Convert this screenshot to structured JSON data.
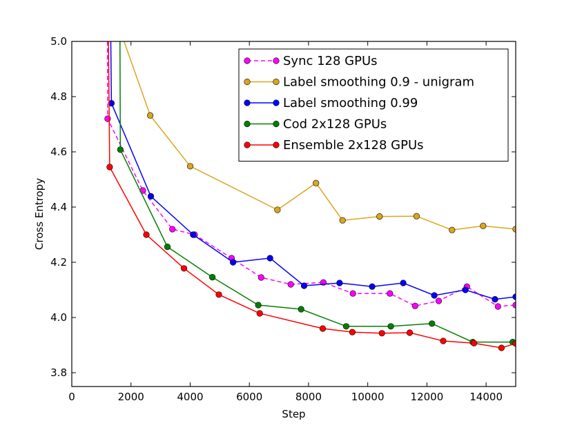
{
  "chart_data": {
    "type": "line",
    "title": "",
    "xlabel": "Step",
    "ylabel": "Cross Entropy",
    "xlim": [
      0,
      15000
    ],
    "ylim": [
      3.75,
      5.0
    ],
    "xticks": [
      0,
      2000,
      4000,
      6000,
      8000,
      10000,
      12000,
      14000
    ],
    "yticks": [
      3.8,
      4.0,
      4.2,
      4.4,
      4.6,
      4.8,
      5.0
    ],
    "grid": false,
    "legend_position": "top-right",
    "series": [
      {
        "name": "Sync 128 GPUs",
        "color": "#ff00ff",
        "linestyle": "dashed",
        "points": [
          [
            1200,
            5.3
          ],
          [
            1210,
            4.72
          ],
          [
            2400,
            4.46
          ],
          [
            3400,
            4.32
          ],
          [
            4150,
            4.3
          ],
          [
            5400,
            4.215
          ],
          [
            6400,
            4.145
          ],
          [
            7400,
            4.12
          ],
          [
            8500,
            4.127
          ],
          [
            9500,
            4.087
          ],
          [
            10750,
            4.087
          ],
          [
            11600,
            4.042
          ],
          [
            12400,
            4.06
          ],
          [
            13350,
            4.112
          ],
          [
            14400,
            4.04
          ],
          [
            15000,
            4.045
          ]
        ]
      },
      {
        "name": "Label smoothing 0.9 - unigram",
        "color": "#daa520",
        "linestyle": "solid",
        "points": [
          [
            1600,
            5.05
          ],
          [
            2650,
            4.732
          ],
          [
            4000,
            4.548
          ],
          [
            6950,
            4.39
          ],
          [
            8250,
            4.487
          ],
          [
            9150,
            4.352
          ],
          [
            10400,
            4.366
          ],
          [
            11650,
            4.367
          ],
          [
            12850,
            4.317
          ],
          [
            13900,
            4.332
          ],
          [
            15000,
            4.32
          ]
        ]
      },
      {
        "name": "Label smoothing 0.99",
        "color": "#0000ff",
        "linestyle": "solid",
        "points": [
          [
            1290,
            5.3
          ],
          [
            1340,
            4.776
          ],
          [
            2670,
            4.439
          ],
          [
            4100,
            4.3
          ],
          [
            5450,
            4.2
          ],
          [
            6700,
            4.215
          ],
          [
            7850,
            4.115
          ],
          [
            9050,
            4.125
          ],
          [
            10150,
            4.112
          ],
          [
            11200,
            4.125
          ],
          [
            12250,
            4.08
          ],
          [
            13300,
            4.1
          ],
          [
            14300,
            4.066
          ],
          [
            15000,
            4.075
          ]
        ]
      },
      {
        "name": "Cod 2x128 GPUs",
        "color": "#008000",
        "linestyle": "solid",
        "points": [
          [
            1620,
            5.3
          ],
          [
            1640,
            4.608
          ],
          [
            3230,
            4.256
          ],
          [
            4750,
            4.146
          ],
          [
            6300,
            4.045
          ],
          [
            7750,
            4.03
          ],
          [
            9270,
            3.968
          ],
          [
            10780,
            3.968
          ],
          [
            12170,
            3.978
          ],
          [
            13550,
            3.911
          ],
          [
            14900,
            3.911
          ]
        ]
      },
      {
        "name": "Ensemble 2x128 GPUs",
        "color": "#ff0000",
        "linestyle": "solid",
        "points": [
          [
            1210,
            5.3
          ],
          [
            1280,
            4.545
          ],
          [
            2520,
            4.3
          ],
          [
            3790,
            4.178
          ],
          [
            4970,
            4.083
          ],
          [
            6350,
            4.015
          ],
          [
            8480,
            3.96
          ],
          [
            9480,
            3.947
          ],
          [
            10480,
            3.943
          ],
          [
            11420,
            3.945
          ],
          [
            12550,
            3.915
          ],
          [
            13590,
            3.907
          ],
          [
            14520,
            3.89
          ],
          [
            15000,
            3.906
          ]
        ]
      }
    ]
  }
}
